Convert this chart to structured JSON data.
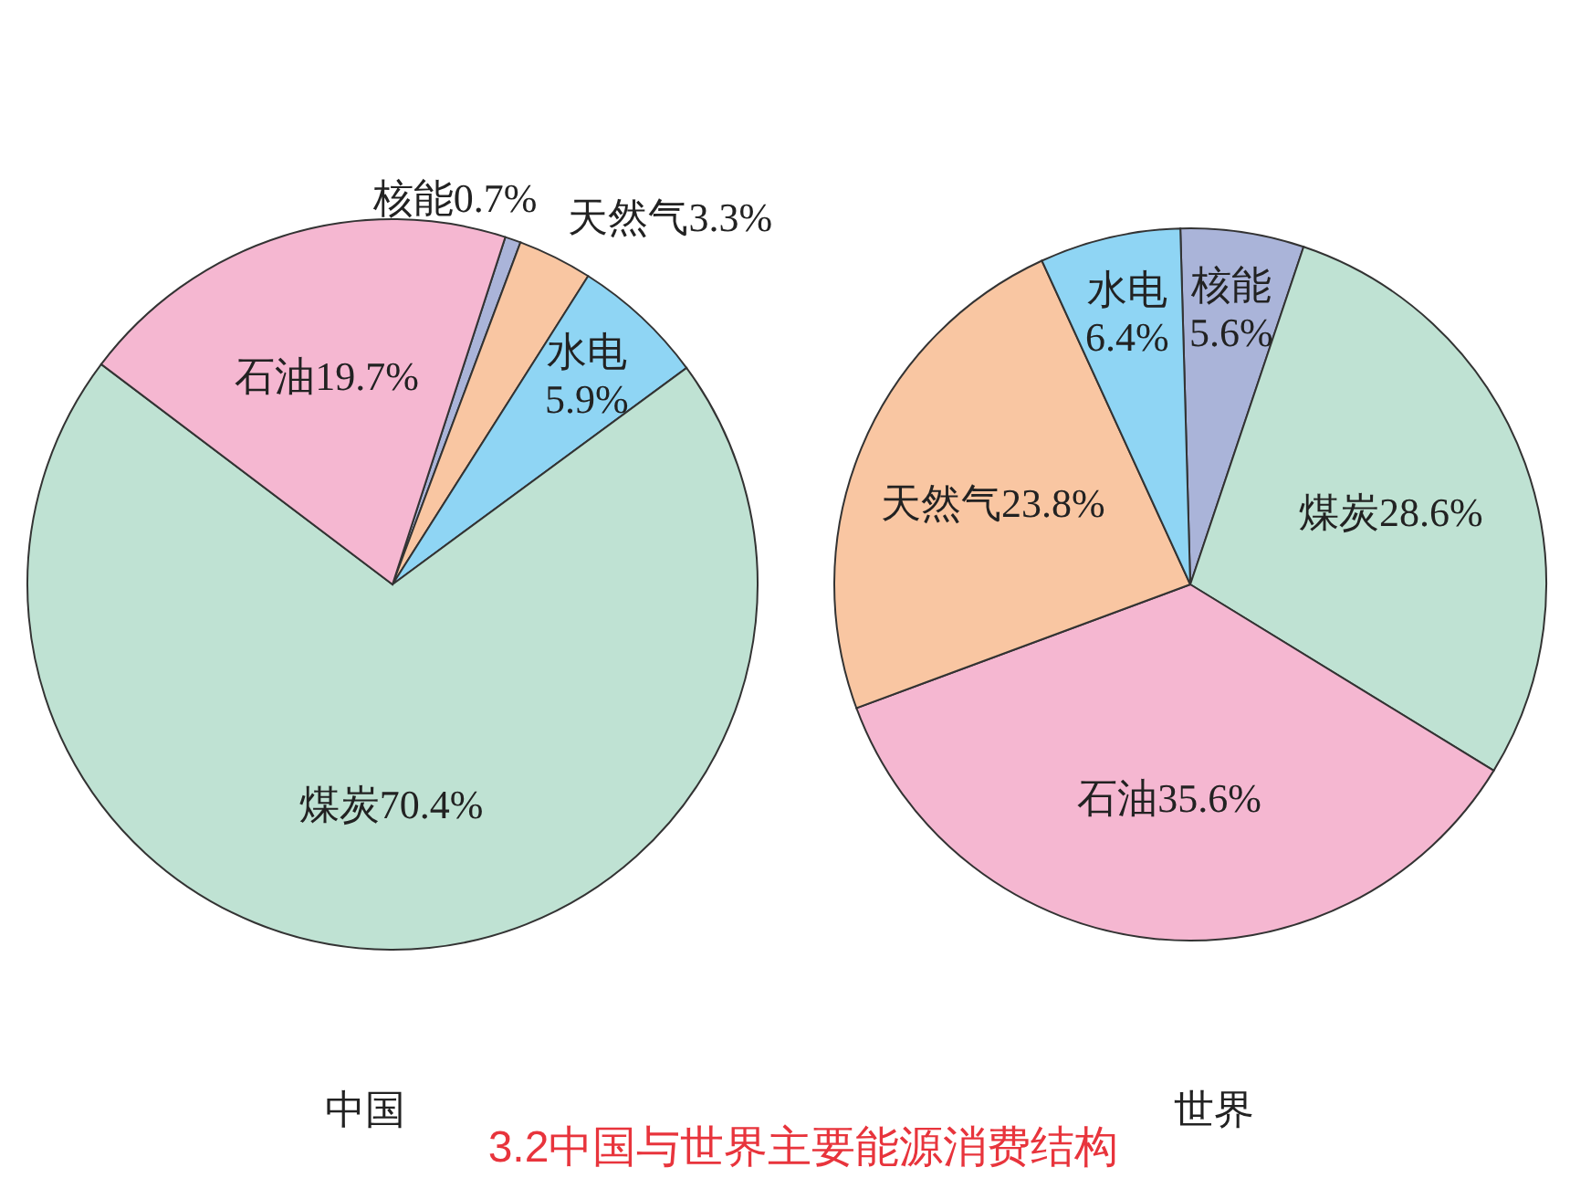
{
  "chart_data": [
    {
      "type": "pie",
      "title": "中国",
      "categories": [
        "核能",
        "天然气",
        "水电",
        "煤炭",
        "石油"
      ],
      "values": [
        0.7,
        3.3,
        5.9,
        70.4,
        19.7
      ],
      "colors": [
        "#aab4d9",
        "#f9c6a2",
        "#8fd5f4",
        "#bfe2d3",
        "#f5b7d1"
      ],
      "value_labels": [
        "0.7%",
        "3.3%",
        "5.9%",
        "70.4%",
        "19.7%"
      ],
      "annotations": [
        "3.2中国与世界主要能源消费结构"
      ]
    },
    {
      "type": "pie",
      "title": "世界",
      "categories": [
        "核能",
        "煤炭",
        "石油",
        "天然气",
        "水电"
      ],
      "values": [
        5.6,
        28.6,
        35.6,
        23.8,
        6.4
      ],
      "colors": [
        "#aab4d9",
        "#bfe2d3",
        "#f5b7d1",
        "#f9c6a2",
        "#8fd5f4"
      ],
      "value_labels": [
        "5.6%",
        "28.6%",
        "35.6%",
        "23.8%",
        "6.4%"
      ]
    }
  ]
}
